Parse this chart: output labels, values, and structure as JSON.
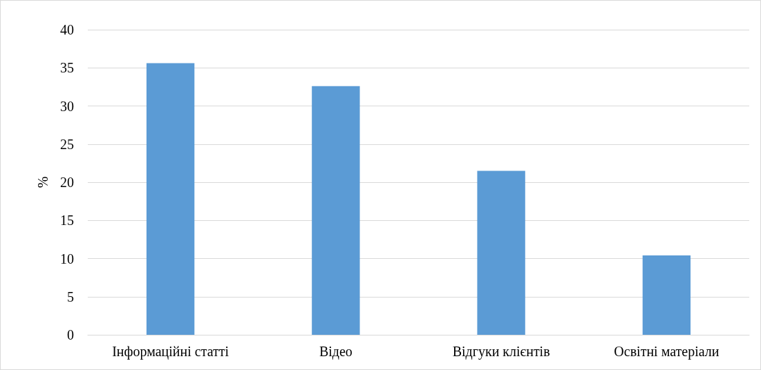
{
  "chart_data": {
    "type": "bar",
    "ylabel": "%",
    "categories": [
      "Інформаційні статті",
      "Відео",
      "Відгуки клієнтів",
      "Освітні матеріали"
    ],
    "values": [
      35.6,
      32.6,
      21.5,
      10.4
    ],
    "color": "#5b9bd5",
    "ylim": [
      0,
      40
    ],
    "yticks": [
      0,
      5,
      10,
      15,
      20,
      25,
      30,
      35,
      40
    ],
    "grid": "y"
  }
}
